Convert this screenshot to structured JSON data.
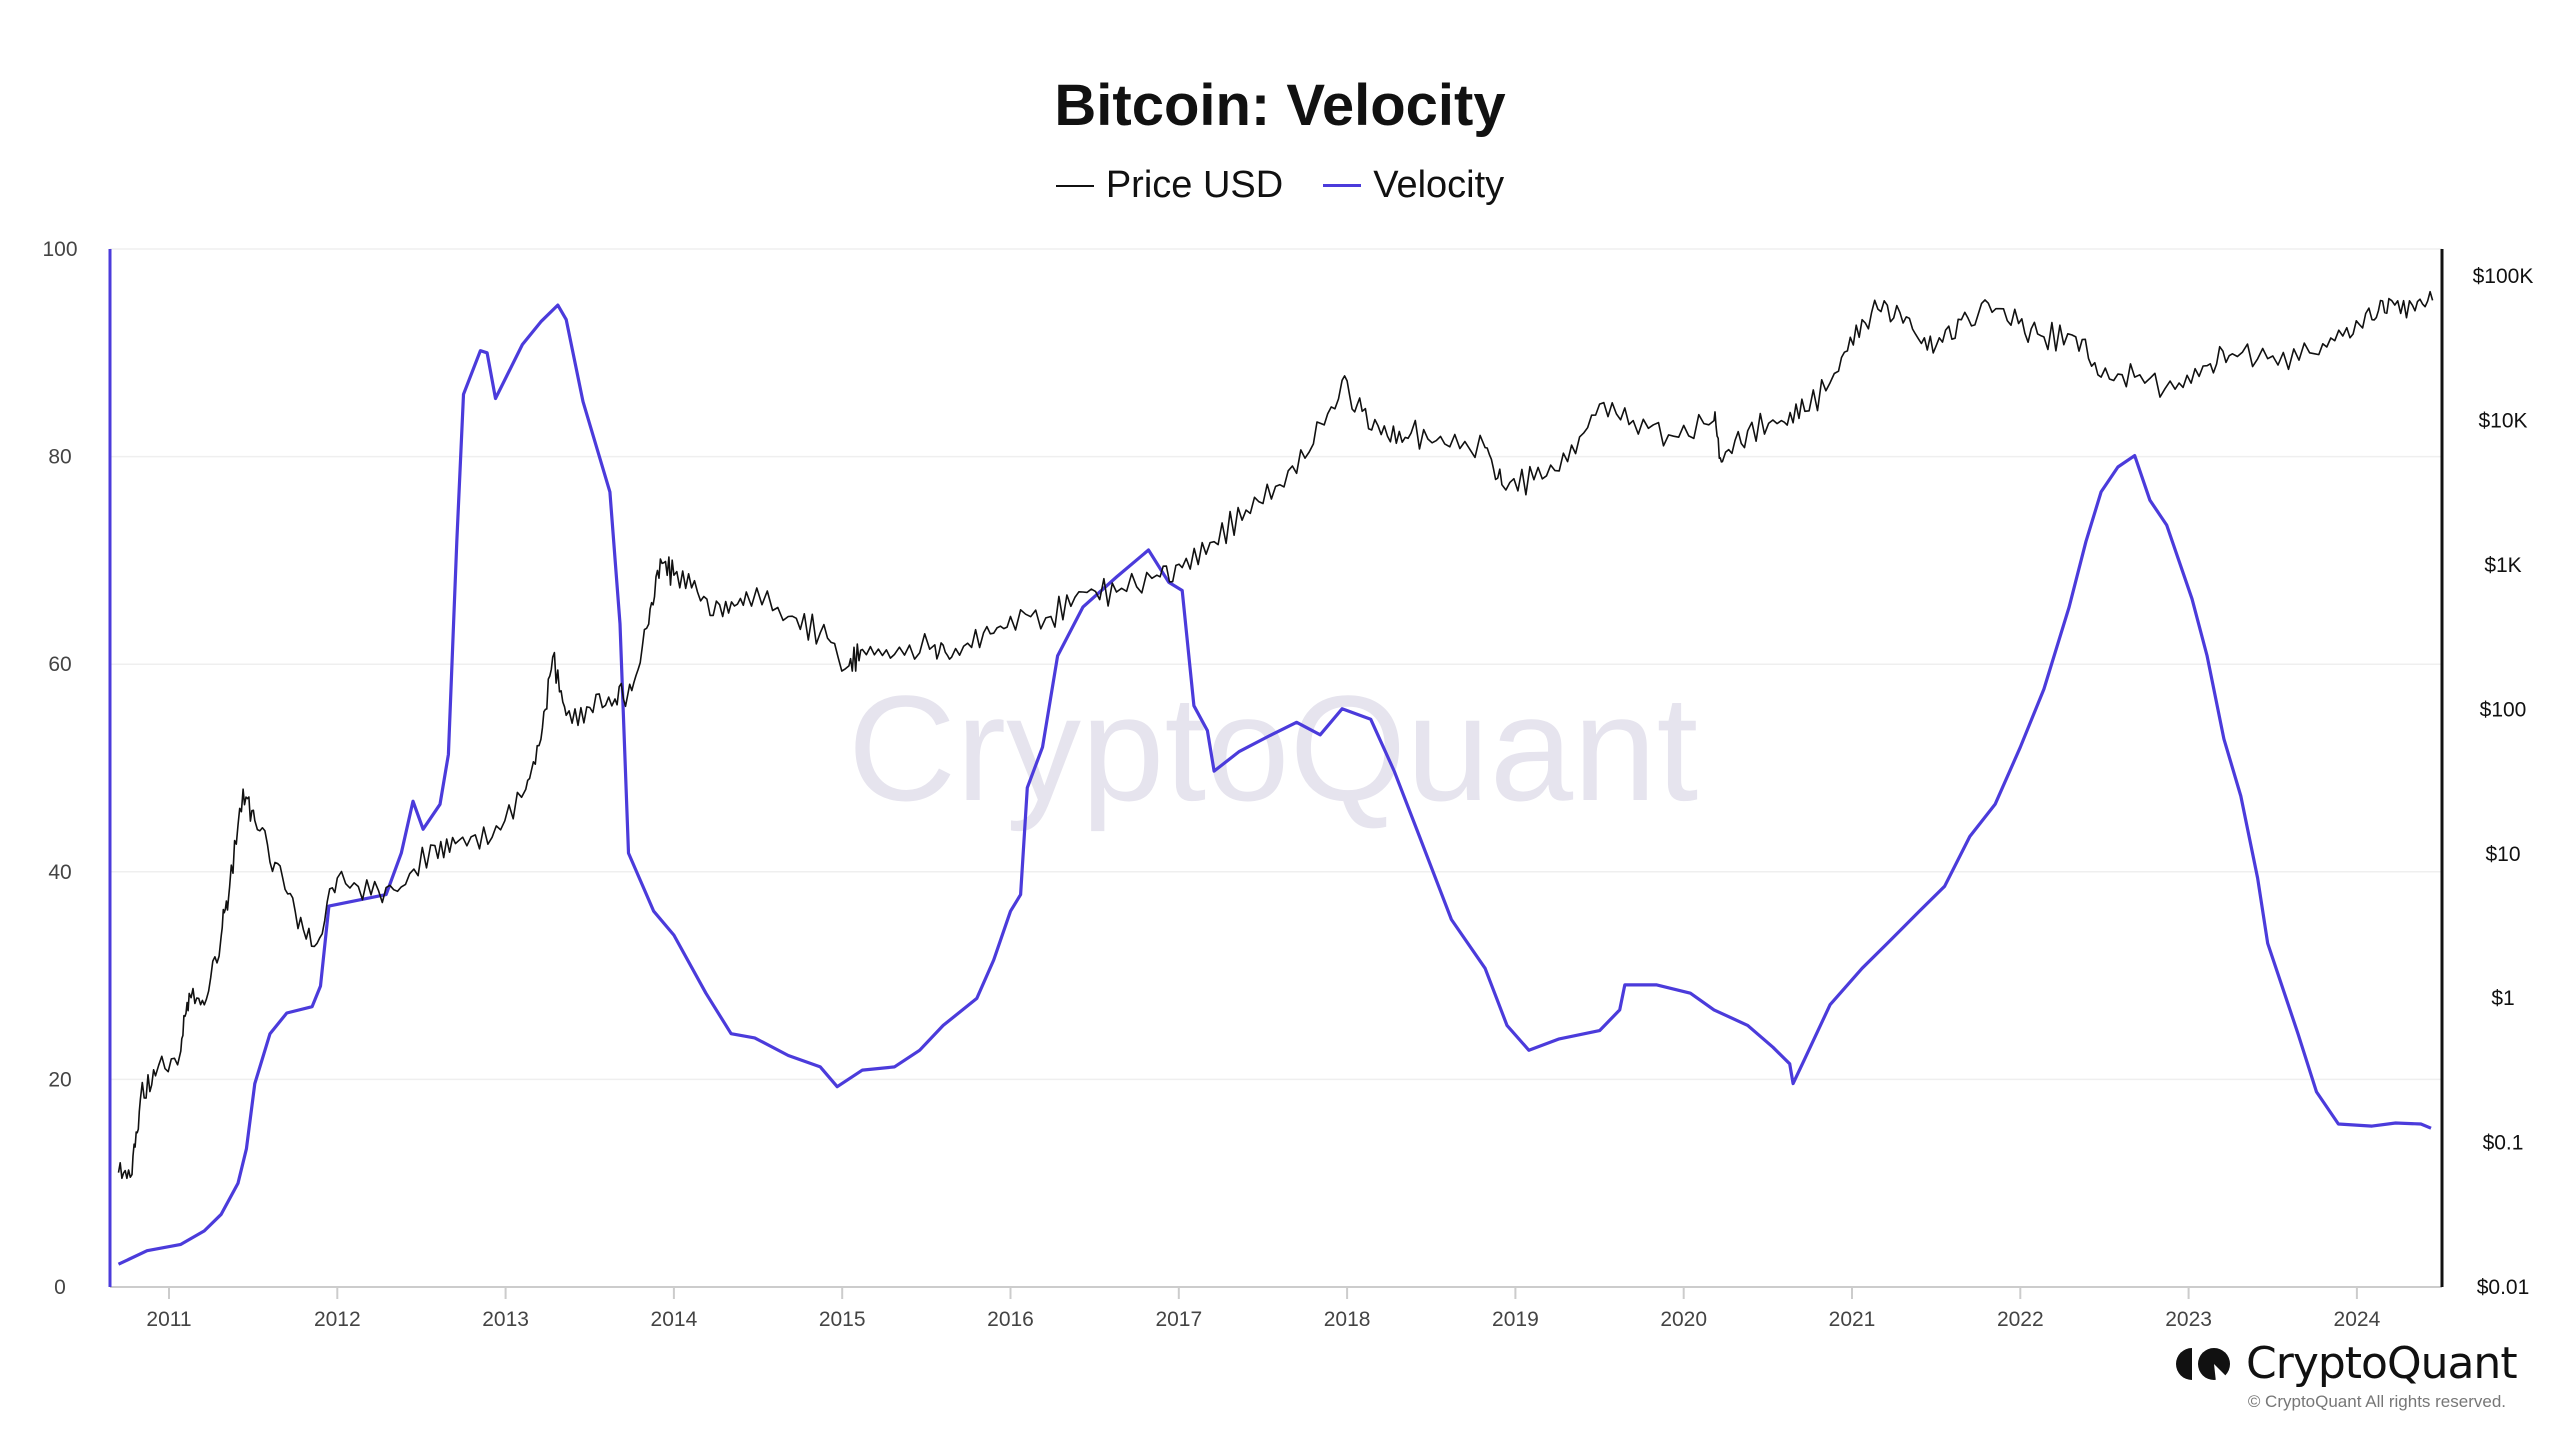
{
  "chart_data": {
    "type": "line",
    "title": "Bitcoin: Velocity",
    "legend": [
      {
        "name": "Price USD",
        "color": "#111111"
      },
      {
        "name": "Velocity",
        "color": "#4b3bdb"
      }
    ],
    "legend_placement": "top-center",
    "x_ticks": [
      "2011",
      "2012",
      "2013",
      "2014",
      "2015",
      "2016",
      "2017",
      "2018",
      "2019",
      "2020",
      "2021",
      "2022",
      "2023",
      "2024"
    ],
    "y_left": {
      "label": "",
      "range": [
        0,
        100
      ],
      "ticks": [
        "0",
        "20",
        "40",
        "60",
        "80",
        "100"
      ]
    },
    "y_right": {
      "label": "",
      "scale": "log",
      "range": [
        0.01,
        150000
      ],
      "ticks": [
        {
          "label": "$0.01",
          "value": 0.01
        },
        {
          "label": "$0.1",
          "value": 0.1
        },
        {
          "label": "$1",
          "value": 1
        },
        {
          "label": "$10",
          "value": 10
        },
        {
          "label": "$100",
          "value": 100
        },
        {
          "label": "$1K",
          "value": 1000
        },
        {
          "label": "$10K",
          "value": 10000
        },
        {
          "label": "$100K",
          "value": 100000
        }
      ]
    },
    "grid": true,
    "watermark": "CryptoQuant",
    "series": [
      {
        "name": "Velocity",
        "axis": "left",
        "points": [
          [
            2010.7,
            2.2
          ],
          [
            2010.87,
            3.5
          ],
          [
            2011.07,
            4.1
          ],
          [
            2011.21,
            5.4
          ],
          [
            2011.31,
            7
          ],
          [
            2011.41,
            10
          ],
          [
            2011.46,
            13.3
          ],
          [
            2011.51,
            19.6
          ],
          [
            2011.6,
            24.4
          ],
          [
            2011.7,
            26.4
          ],
          [
            2011.85,
            27
          ],
          [
            2011.9,
            29
          ],
          [
            2011.95,
            36.7
          ],
          [
            2012.29,
            37.8
          ],
          [
            2012.38,
            41.8
          ],
          [
            2012.45,
            46.8
          ],
          [
            2012.51,
            44.1
          ],
          [
            2012.61,
            46.5
          ],
          [
            2012.66,
            51.3
          ],
          [
            2012.71,
            71.8
          ],
          [
            2012.75,
            86
          ],
          [
            2012.85,
            90.2
          ],
          [
            2012.89,
            90
          ],
          [
            2012.94,
            85.6
          ],
          [
            2013.1,
            90.8
          ],
          [
            2013.21,
            93
          ],
          [
            2013.31,
            94.6
          ],
          [
            2013.36,
            93.2
          ],
          [
            2013.46,
            85.3
          ],
          [
            2013.62,
            76.6
          ],
          [
            2013.68,
            63.9
          ],
          [
            2013.73,
            41.8
          ],
          [
            2013.88,
            36.2
          ],
          [
            2014.0,
            33.9
          ],
          [
            2014.19,
            28.3
          ],
          [
            2014.34,
            24.4
          ],
          [
            2014.48,
            24
          ],
          [
            2014.68,
            22.3
          ],
          [
            2014.87,
            21.2
          ],
          [
            2014.97,
            19.3
          ],
          [
            2015.12,
            20.9
          ],
          [
            2015.31,
            21.2
          ],
          [
            2015.46,
            22.8
          ],
          [
            2015.6,
            25.2
          ],
          [
            2015.8,
            27.8
          ],
          [
            2015.9,
            31.5
          ],
          [
            2016.0,
            36.2
          ],
          [
            2016.06,
            37.8
          ],
          [
            2016.1,
            48.1
          ],
          [
            2016.19,
            52
          ],
          [
            2016.28,
            60.8
          ],
          [
            2016.43,
            65.5
          ],
          [
            2016.63,
            68.4
          ],
          [
            2016.82,
            71
          ],
          [
            2016.94,
            67.9
          ],
          [
            2017.02,
            67.1
          ],
          [
            2017.09,
            56
          ],
          [
            2017.17,
            53.6
          ],
          [
            2017.21,
            49.7
          ],
          [
            2017.36,
            51.6
          ],
          [
            2017.55,
            53.2
          ],
          [
            2017.7,
            54.4
          ],
          [
            2017.84,
            53.2
          ],
          [
            2017.97,
            55.7
          ],
          [
            2018.14,
            54.7
          ],
          [
            2018.28,
            49.7
          ],
          [
            2018.43,
            43.4
          ],
          [
            2018.62,
            35.4
          ],
          [
            2018.82,
            30.7
          ],
          [
            2018.95,
            25.2
          ],
          [
            2019.08,
            22.8
          ],
          [
            2019.26,
            23.9
          ],
          [
            2019.5,
            24.7
          ],
          [
            2019.62,
            26.7
          ],
          [
            2019.65,
            29.1
          ],
          [
            2019.84,
            29.1
          ],
          [
            2020.04,
            28.3
          ],
          [
            2020.18,
            26.7
          ],
          [
            2020.38,
            25.2
          ],
          [
            2020.53,
            23.1
          ],
          [
            2020.63,
            21.5
          ],
          [
            2020.65,
            19.6
          ],
          [
            2020.72,
            22
          ],
          [
            2020.87,
            27.2
          ],
          [
            2021.06,
            30.7
          ],
          [
            2021.21,
            33.1
          ],
          [
            2021.4,
            36.2
          ],
          [
            2021.55,
            38.6
          ],
          [
            2021.7,
            43.4
          ],
          [
            2021.85,
            46.5
          ],
          [
            2022.0,
            52
          ],
          [
            2022.14,
            57.6
          ],
          [
            2022.29,
            65.5
          ],
          [
            2022.39,
            71.8
          ],
          [
            2022.48,
            76.6
          ],
          [
            2022.58,
            79
          ],
          [
            2022.68,
            80.1
          ],
          [
            2022.77,
            75.8
          ],
          [
            2022.87,
            73.4
          ],
          [
            2023.02,
            66.3
          ],
          [
            2023.11,
            60.8
          ],
          [
            2023.21,
            52.8
          ],
          [
            2023.31,
            47.3
          ],
          [
            2023.41,
            39.4
          ],
          [
            2023.47,
            33.1
          ],
          [
            2023.65,
            24.4
          ],
          [
            2023.76,
            18.8
          ],
          [
            2023.89,
            15.7
          ],
          [
            2024.09,
            15.5
          ],
          [
            2024.23,
            15.8
          ],
          [
            2024.38,
            15.7
          ],
          [
            2024.44,
            15.3
          ]
        ]
      },
      {
        "name": "Price USD",
        "axis": "right",
        "points": [
          [
            2010.7,
            0.062
          ],
          [
            2010.78,
            0.06
          ],
          [
            2010.83,
            0.2
          ],
          [
            2010.92,
            0.29
          ],
          [
            2011.07,
            0.43
          ],
          [
            2011.12,
            1.08
          ],
          [
            2011.21,
            0.9
          ],
          [
            2011.31,
            2.7
          ],
          [
            2011.36,
            5.9
          ],
          [
            2011.44,
            28
          ],
          [
            2011.51,
            17
          ],
          [
            2011.63,
            8.7
          ],
          [
            2011.75,
            4
          ],
          [
            2011.88,
            2.4
          ],
          [
            2012.0,
            6.8
          ],
          [
            2012.2,
            5.2
          ],
          [
            2012.38,
            5.9
          ],
          [
            2012.58,
            11.4
          ],
          [
            2012.72,
            12.3
          ],
          [
            2012.92,
            13
          ],
          [
            2013.12,
            28
          ],
          [
            2013.21,
            62
          ],
          [
            2013.28,
            230
          ],
          [
            2013.36,
            91
          ],
          [
            2013.5,
            103
          ],
          [
            2013.65,
            118
          ],
          [
            2013.75,
            135
          ],
          [
            2013.85,
            390
          ],
          [
            2013.92,
            1100
          ],
          [
            2014.0,
            850
          ],
          [
            2014.14,
            650
          ],
          [
            2014.29,
            440
          ],
          [
            2014.43,
            650
          ],
          [
            2014.68,
            440
          ],
          [
            2014.87,
            340
          ],
          [
            2015.04,
            200
          ],
          [
            2015.12,
            260
          ],
          [
            2015.31,
            240
          ],
          [
            2015.55,
            280
          ],
          [
            2015.65,
            230
          ],
          [
            2015.84,
            340
          ],
          [
            2016.0,
            440
          ],
          [
            2016.24,
            440
          ],
          [
            2016.43,
            650
          ],
          [
            2016.63,
            650
          ],
          [
            2016.87,
            850
          ],
          [
            2017.02,
            960
          ],
          [
            2017.21,
            1450
          ],
          [
            2017.4,
            2400
          ],
          [
            2017.6,
            3600
          ],
          [
            2017.8,
            6900
          ],
          [
            2017.97,
            19000
          ],
          [
            2018.09,
            11600
          ],
          [
            2018.24,
            7800
          ],
          [
            2018.38,
            8200
          ],
          [
            2018.58,
            6900
          ],
          [
            2018.82,
            6500
          ],
          [
            2018.92,
            3600
          ],
          [
            2019.11,
            3900
          ],
          [
            2019.31,
            5200
          ],
          [
            2019.5,
            13000
          ],
          [
            2019.7,
            10000
          ],
          [
            2019.94,
            7800
          ],
          [
            2020.18,
            10000
          ],
          [
            2020.23,
            5200
          ],
          [
            2020.38,
            8500
          ],
          [
            2020.58,
            10000
          ],
          [
            2020.72,
            11600
          ],
          [
            2020.92,
            22000
          ],
          [
            2021.06,
            50000
          ],
          [
            2021.21,
            63000
          ],
          [
            2021.36,
            43000
          ],
          [
            2021.5,
            33000
          ],
          [
            2021.65,
            50000
          ],
          [
            2021.81,
            65000
          ],
          [
            2021.99,
            47000
          ],
          [
            2022.14,
            38000
          ],
          [
            2022.33,
            38000
          ],
          [
            2022.48,
            20000
          ],
          [
            2022.68,
            20000
          ],
          [
            2022.92,
            16500
          ],
          [
            2023.11,
            24000
          ],
          [
            2023.26,
            29000
          ],
          [
            2023.5,
            28000
          ],
          [
            2023.75,
            29000
          ],
          [
            2023.94,
            44000
          ],
          [
            2024.09,
            50000
          ],
          [
            2024.19,
            70000
          ],
          [
            2024.33,
            63000
          ],
          [
            2024.45,
            68000
          ]
        ]
      }
    ]
  },
  "branding": {
    "logo_text": "CryptoQuant",
    "copyright": "© CryptoQuant All rights reserved."
  }
}
